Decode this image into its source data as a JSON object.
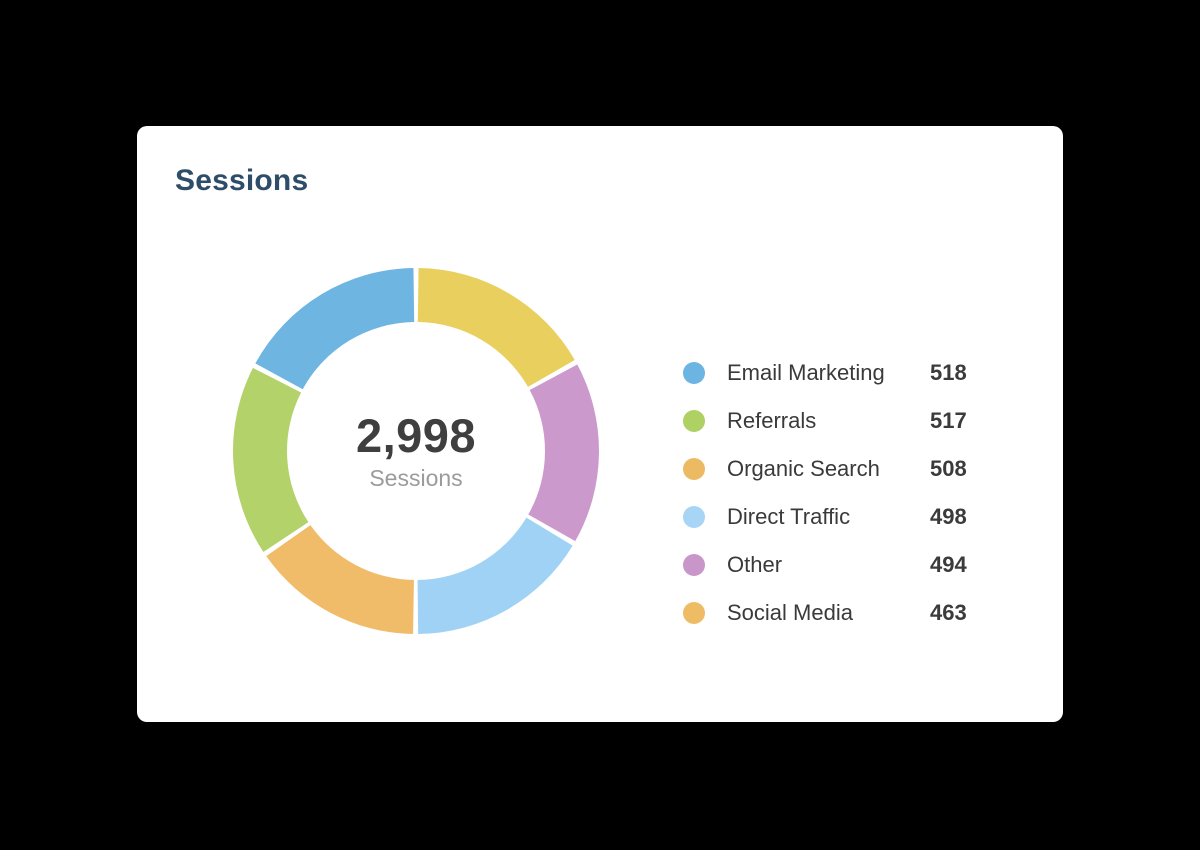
{
  "page": {
    "background_color": "#000000",
    "card_color": "#ffffff"
  },
  "card": {
    "title": "Sessions",
    "title_color": "#2E4D68"
  },
  "chart_data": {
    "type": "pie",
    "variant": "donut",
    "title": "Sessions",
    "center": {
      "value": "2,998",
      "label": "Sessions",
      "value_color": "#3F3F3F",
      "label_color": "#9B9B9B"
    },
    "total": 2998,
    "items": [
      {
        "label": "Email Marketing",
        "value": 518,
        "color": "#6FB5E1",
        "dot_color": "#6CB4E1"
      },
      {
        "label": "Referrals",
        "value": 517,
        "color": "#B3D26A",
        "dot_color": "#AFD163"
      },
      {
        "label": "Organic Search",
        "value": 508,
        "color": "#E9D05E",
        "dot_color": "#EDBA64"
      },
      {
        "label": "Direct Traffic",
        "value": 498,
        "color": "#A0D2F6",
        "dot_color": "#A8D5F5"
      },
      {
        "label": "Other",
        "value": 494,
        "color": "#CC99CC",
        "dot_color": "#C996C9"
      },
      {
        "label": "Social Media",
        "value": 463,
        "color": "#F0BC6A",
        "dot_color": "#EFBC66"
      }
    ],
    "segment_order_clockwise_from_top": [
      2,
      4,
      3,
      5,
      1,
      0
    ],
    "start_angle_deg": 0,
    "gap_degrees": 1.6,
    "outer_radius": 183,
    "inner_radius": 129,
    "legend_position": "right",
    "grid": false
  }
}
